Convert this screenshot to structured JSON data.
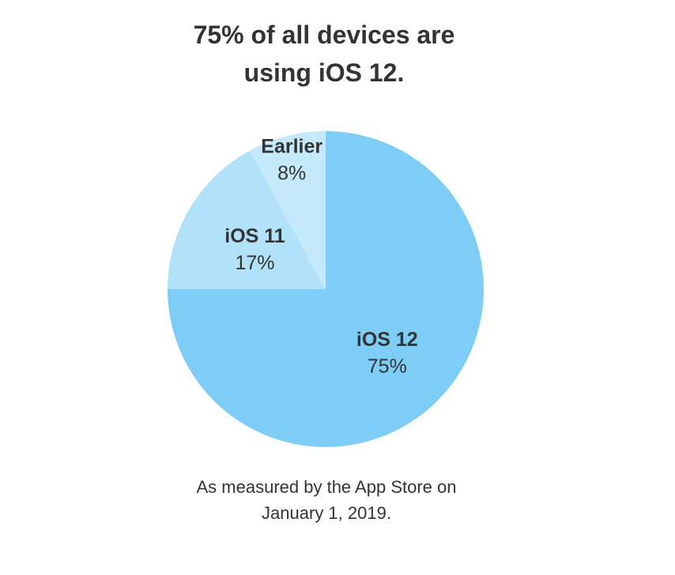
{
  "title": {
    "line1": "75% of all devices are",
    "line2": "using iOS 12."
  },
  "caption": {
    "line1": "As measured by the App Store on",
    "line2": "January 1, 2019."
  },
  "chart_data": {
    "type": "pie",
    "title": "75% of all devices are using iOS 12.",
    "start_angle_deg": 0,
    "direction": "clockwise",
    "slices": [
      {
        "label": "iOS 12",
        "value": 75,
        "value_label": "75%",
        "color": "#7dcdf6"
      },
      {
        "label": "iOS 11",
        "value": 17,
        "value_label": "17%",
        "color": "#b2e2f9"
      },
      {
        "label": "Earlier",
        "value": 8,
        "value_label": "8%",
        "color": "#c4e9fb"
      }
    ]
  }
}
